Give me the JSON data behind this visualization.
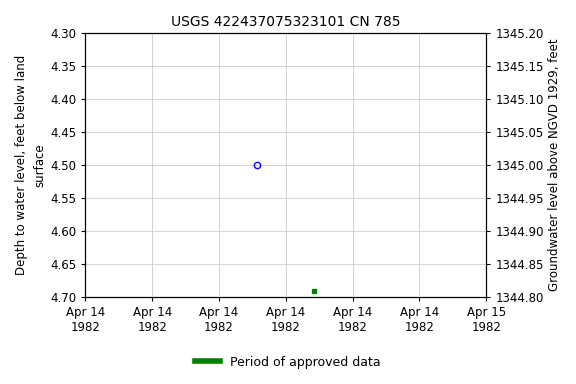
{
  "title": "USGS 422437075323101 CN 785",
  "ylabel_left": "Depth to water level, feet below land\nsurface",
  "ylabel_right": "Groundwater level above NGVD 1929, feet",
  "ylim_left": [
    4.7,
    4.3
  ],
  "ylim_right": [
    1344.8,
    1345.2
  ],
  "yticks_left": [
    4.3,
    4.35,
    4.4,
    4.45,
    4.5,
    4.55,
    4.6,
    4.65,
    4.7
  ],
  "yticks_right": [
    1344.8,
    1344.85,
    1344.9,
    1344.95,
    1345.0,
    1345.05,
    1345.1,
    1345.15,
    1345.2
  ],
  "point_blue_x_hours": 12.0,
  "point_blue_y": 4.5,
  "point_green_x_hours": 16.0,
  "point_green_y": 4.69,
  "x_total_hours": 28.0,
  "xtick_positions_hours": [
    0.0,
    4.667,
    9.333,
    14.0,
    18.667,
    23.333,
    28.0
  ],
  "xtick_labels": [
    "Apr 14\n1982",
    "Apr 14\n1982",
    "Apr 14\n1982",
    "Apr 14\n1982",
    "Apr 14\n1982",
    "Apr 14\n1982",
    "Apr 15\n1982"
  ],
  "grid_color": "#cccccc",
  "bg_color": "#ffffff",
  "title_fontsize": 10,
  "axis_label_fontsize": 8.5,
  "tick_fontsize": 8.5,
  "legend_label": "Period of approved data",
  "legend_color": "#008000"
}
